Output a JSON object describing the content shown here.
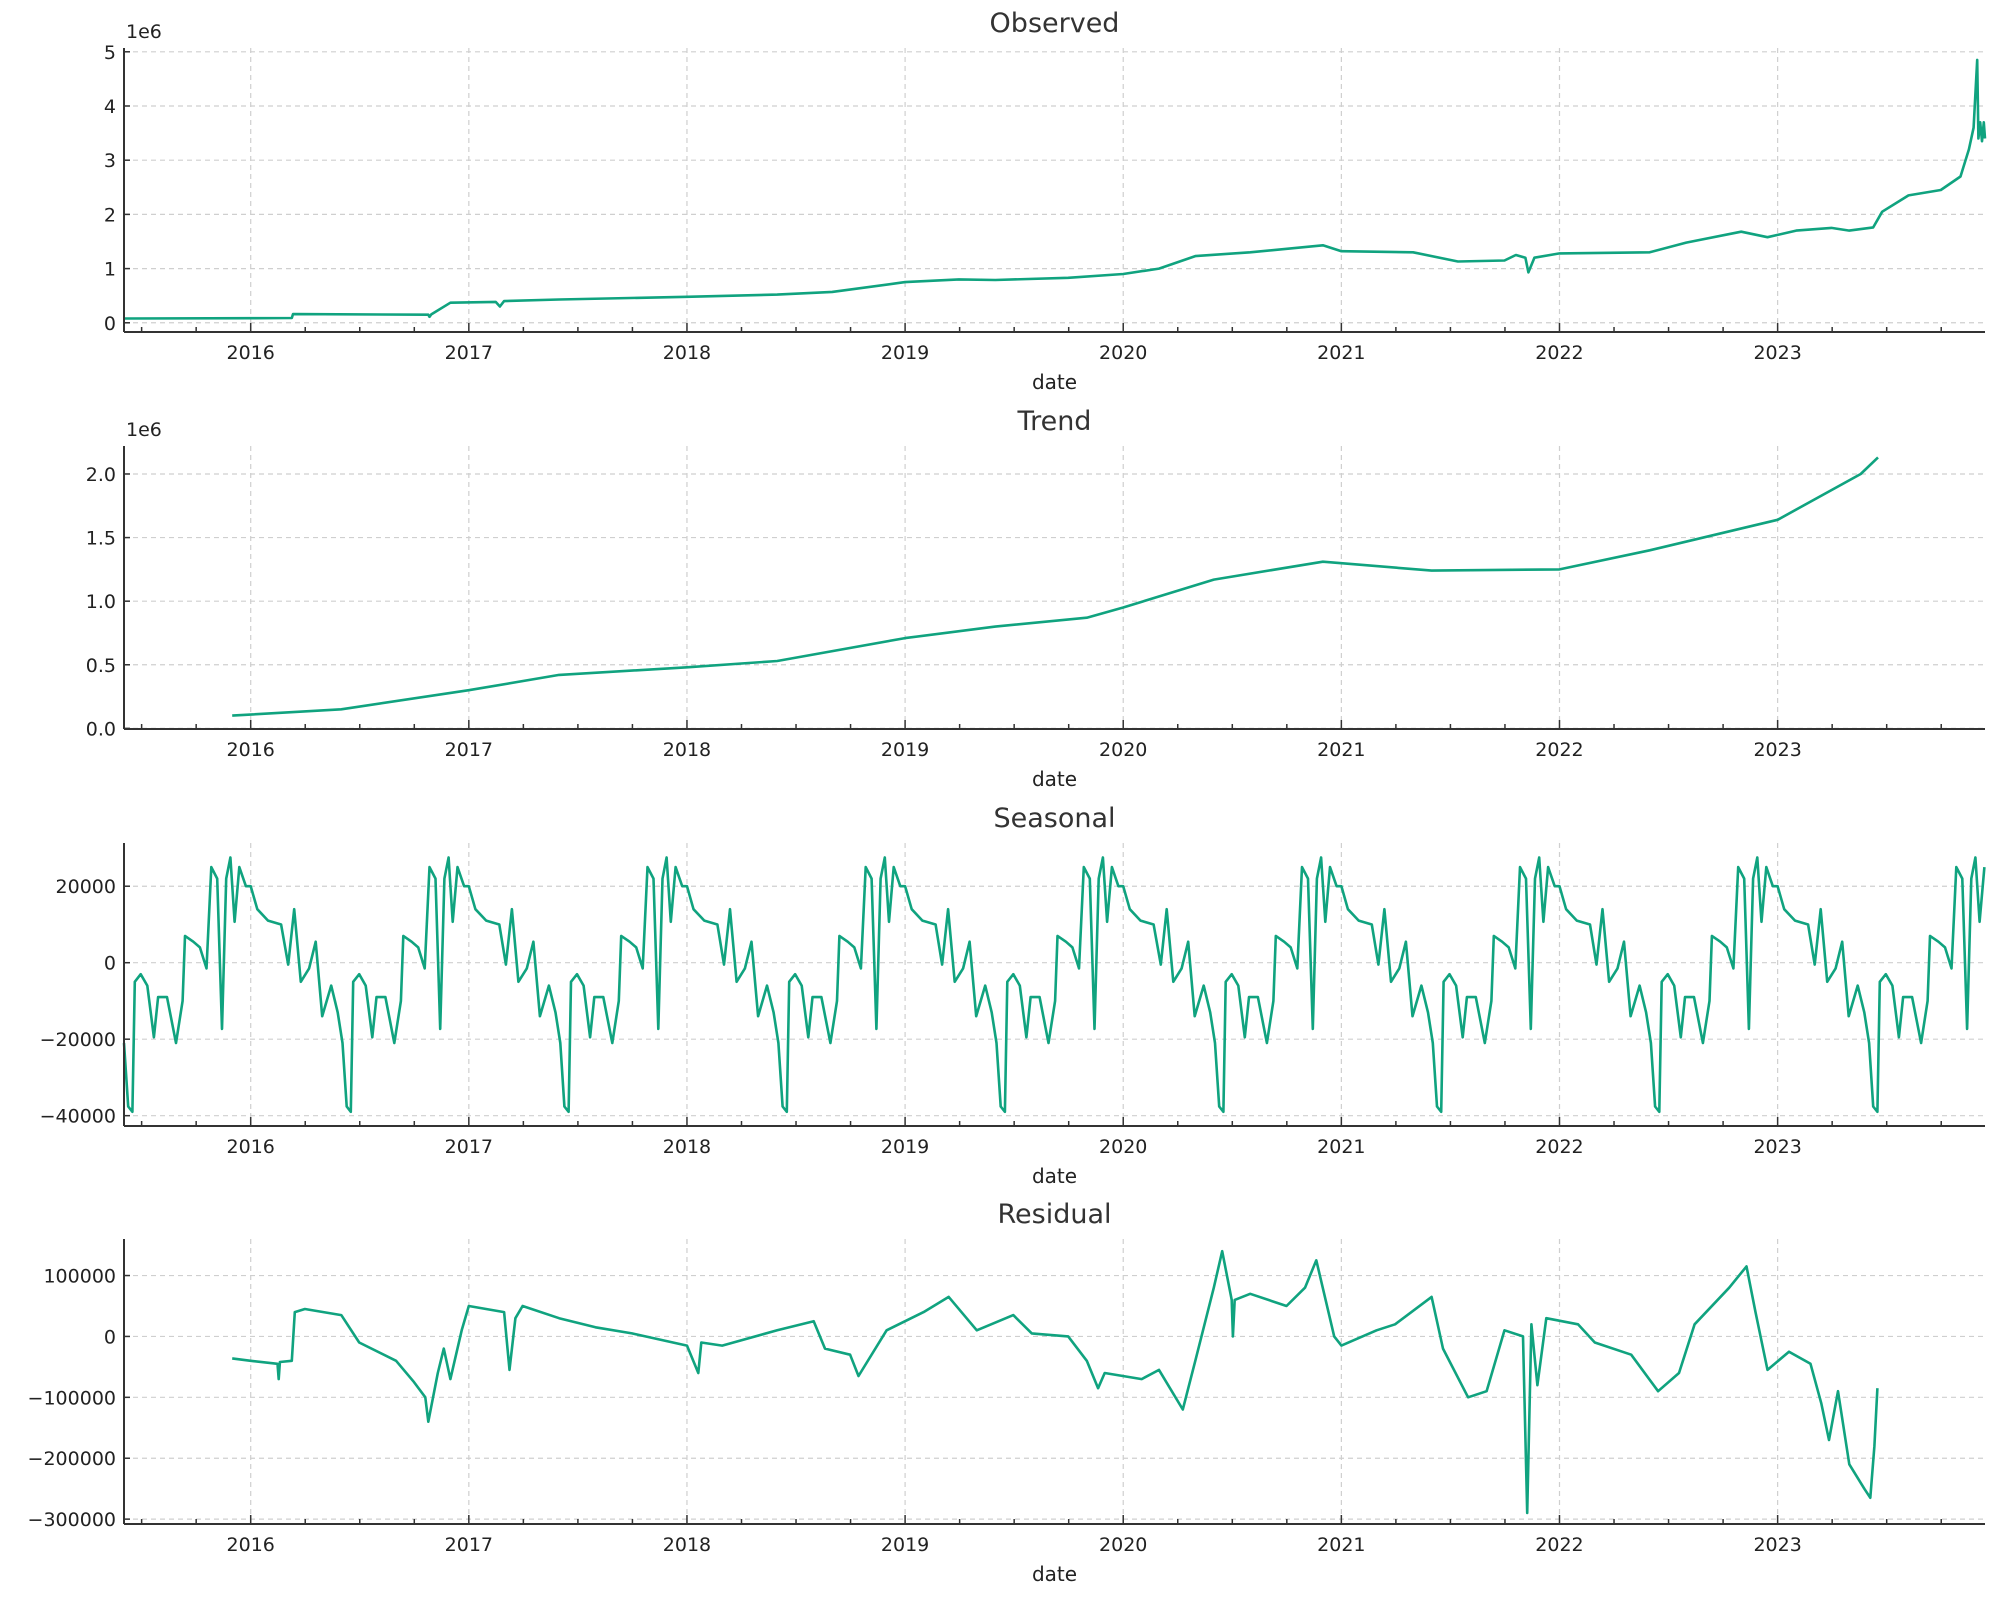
{
  "colors": {
    "line": "#10a37f",
    "grid": "#cfcfcf",
    "axis": "#333333"
  },
  "chart_data": [
    {
      "type": "line",
      "title": "Observed",
      "xlabel": "date",
      "ylabel": "",
      "offset_label": "1e6",
      "grid": true,
      "xlim": [
        "2015-06-03",
        "2023-12-14"
      ],
      "ylim": [
        -170000,
        5070000
      ],
      "xticks": [
        "2016",
        "2017",
        "2018",
        "2019",
        "2020",
        "2021",
        "2022",
        "2023"
      ],
      "yticks": [
        0,
        1000000,
        2000000,
        3000000,
        4000000,
        5000000
      ],
      "ytick_labels": [
        "0",
        "1",
        "2",
        "3",
        "4",
        "5"
      ],
      "points": [
        [
          "2015-06-03",
          80000
        ],
        [
          "2016-01-01",
          85000
        ],
        [
          "2016-03-10",
          88000
        ],
        [
          "2016-03-12",
          160000
        ],
        [
          "2016-10-25",
          150000
        ],
        [
          "2016-10-27",
          110000
        ],
        [
          "2016-10-30",
          155000
        ],
        [
          "2016-12-01",
          370000
        ],
        [
          "2017-02-15",
          385000
        ],
        [
          "2017-02-22",
          300000
        ],
        [
          "2017-03-01",
          400000
        ],
        [
          "2017-06-01",
          430000
        ],
        [
          "2018-01-01",
          480000
        ],
        [
          "2018-06-01",
          520000
        ],
        [
          "2018-09-01",
          570000
        ],
        [
          "2019-01-01",
          750000
        ],
        [
          "2019-04-01",
          800000
        ],
        [
          "2019-06-01",
          790000
        ],
        [
          "2019-10-01",
          830000
        ],
        [
          "2020-01-01",
          900000
        ],
        [
          "2020-03-01",
          1000000
        ],
        [
          "2020-05-01",
          1230000
        ],
        [
          "2020-08-01",
          1300000
        ],
        [
          "2020-12-01",
          1430000
        ],
        [
          "2021-01-01",
          1320000
        ],
        [
          "2021-05-01",
          1300000
        ],
        [
          "2021-07-15",
          1130000
        ],
        [
          "2021-10-01",
          1150000
        ],
        [
          "2021-10-20",
          1250000
        ],
        [
          "2021-11-05",
          1200000
        ],
        [
          "2021-11-10",
          930000
        ],
        [
          "2021-11-20",
          1200000
        ],
        [
          "2022-01-01",
          1280000
        ],
        [
          "2022-06-01",
          1300000
        ],
        [
          "2022-08-01",
          1480000
        ],
        [
          "2022-11-01",
          1680000
        ],
        [
          "2022-12-15",
          1580000
        ],
        [
          "2023-02-01",
          1700000
        ],
        [
          "2023-04-01",
          1750000
        ],
        [
          "2023-05-01",
          1700000
        ],
        [
          "2023-06-10",
          1760000
        ],
        [
          "2023-06-25",
          2050000
        ],
        [
          "2023-08-08",
          2350000
        ],
        [
          "2023-10-01",
          2450000
        ],
        [
          "2023-11-03",
          2700000
        ],
        [
          "2023-11-17",
          3200000
        ],
        [
          "2023-11-25",
          3600000
        ],
        [
          "2023-12-01",
          4850000
        ],
        [
          "2023-12-03",
          3400000
        ],
        [
          "2023-12-06",
          3700000
        ],
        [
          "2023-12-09",
          3350000
        ],
        [
          "2023-12-12",
          3700000
        ],
        [
          "2023-12-14",
          3400000
        ]
      ]
    },
    {
      "type": "line",
      "title": "Trend",
      "xlabel": "date",
      "ylabel": "",
      "offset_label": "1e6",
      "grid": true,
      "xlim": [
        "2015-06-03",
        "2023-12-14"
      ],
      "ylim": [
        -5000,
        2220000
      ],
      "xticks": [
        "2016",
        "2017",
        "2018",
        "2019",
        "2020",
        "2021",
        "2022",
        "2023"
      ],
      "yticks": [
        0,
        500000,
        1000000,
        1500000,
        2000000
      ],
      "ytick_labels": [
        "0.0",
        "0.5",
        "1.0",
        "1.5",
        "2.0"
      ],
      "points": [
        [
          "2015-12-01",
          100000
        ],
        [
          "2016-06-01",
          150000
        ],
        [
          "2017-01-01",
          300000
        ],
        [
          "2017-06-01",
          420000
        ],
        [
          "2018-01-01",
          480000
        ],
        [
          "2018-06-01",
          530000
        ],
        [
          "2019-01-01",
          710000
        ],
        [
          "2019-06-01",
          800000
        ],
        [
          "2019-11-01",
          870000
        ],
        [
          "2020-01-01",
          950000
        ],
        [
          "2020-06-01",
          1170000
        ],
        [
          "2020-12-01",
          1310000
        ],
        [
          "2021-06-01",
          1240000
        ],
        [
          "2022-01-01",
          1250000
        ],
        [
          "2022-06-01",
          1400000
        ],
        [
          "2023-01-01",
          1640000
        ],
        [
          "2023-05-20",
          2000000
        ],
        [
          "2023-06-18",
          2130000
        ]
      ]
    },
    {
      "type": "line",
      "title": "Seasonal",
      "xlabel": "date",
      "ylabel": "",
      "grid": true,
      "repeats": "yearly",
      "xlim": [
        "2015-06-03",
        "2023-12-14"
      ],
      "ylim": [
        -42700,
        31300
      ],
      "xticks": [
        "2016",
        "2017",
        "2018",
        "2019",
        "2020",
        "2021",
        "2022",
        "2023"
      ],
      "yticks": [
        -40000,
        -20000,
        0,
        20000
      ],
      "ytick_labels": [
        "−40000",
        "−20000",
        "0",
        "20000"
      ],
      "cycle_points": [
        [
          "01-01",
          20000
        ],
        [
          "01-12",
          14000
        ],
        [
          "01-30",
          11000
        ],
        [
          "02-21",
          10000
        ],
        [
          "03-04",
          -500
        ],
        [
          "03-14",
          14000
        ],
        [
          "03-25",
          -5000
        ],
        [
          "04-08",
          -1500
        ],
        [
          "04-19",
          5500
        ],
        [
          "04-30",
          -14000
        ],
        [
          "05-15",
          -6000
        ],
        [
          "05-26",
          -13000
        ],
        [
          "06-03",
          -21000
        ],
        [
          "06-10",
          -37600
        ],
        [
          "06-17",
          -39000
        ],
        [
          "06-21",
          -5000
        ],
        [
          "07-01",
          -3000
        ],
        [
          "07-12",
          -6000
        ],
        [
          "07-23",
          -19500
        ],
        [
          "07-30",
          -9000
        ],
        [
          "08-14",
          -9000
        ],
        [
          "08-29",
          -21000
        ],
        [
          "09-09",
          -10000
        ],
        [
          "09-13",
          7000
        ],
        [
          "09-27",
          5500
        ],
        [
          "10-08",
          4000
        ],
        [
          "10-19",
          -1500
        ],
        [
          "10-27",
          25000
        ],
        [
          "11-06",
          22000
        ],
        [
          "11-14",
          -17300
        ],
        [
          "11-21",
          22000
        ],
        [
          "11-28",
          27500
        ],
        [
          "12-05",
          10700
        ],
        [
          "12-13",
          25000
        ],
        [
          "12-24",
          20000
        ]
      ]
    },
    {
      "type": "line",
      "title": "Residual",
      "xlabel": "date",
      "ylabel": "",
      "grid": true,
      "xlim": [
        "2015-06-03",
        "2023-12-14"
      ],
      "ylim": [
        -308000,
        160000
      ],
      "xticks": [
        "2016",
        "2017",
        "2018",
        "2019",
        "2020",
        "2021",
        "2022",
        "2023"
      ],
      "yticks": [
        -300000,
        -200000,
        -100000,
        0,
        100000
      ],
      "ytick_labels": [
        "−300000",
        "−200000",
        "−100000",
        "0",
        "100000"
      ],
      "points": [
        [
          "2015-12-01",
          -36000
        ],
        [
          "2016-01-01",
          -40000
        ],
        [
          "2016-02-15",
          -45000
        ],
        [
          "2016-02-17",
          -70000
        ],
        [
          "2016-02-19",
          -42000
        ],
        [
          "2016-03-10",
          -40000
        ],
        [
          "2016-03-15",
          40000
        ],
        [
          "2016-04-01",
          45000
        ],
        [
          "2016-06-01",
          35000
        ],
        [
          "2016-07-01",
          -10000
        ],
        [
          "2016-09-01",
          -40000
        ],
        [
          "2016-10-01",
          -75000
        ],
        [
          "2016-10-20",
          -100000
        ],
        [
          "2016-10-25",
          -140000
        ],
        [
          "2016-11-10",
          -60000
        ],
        [
          "2016-11-20",
          -20000
        ],
        [
          "2016-12-01",
          -70000
        ],
        [
          "2016-12-20",
          10000
        ],
        [
          "2017-01-01",
          50000
        ],
        [
          "2017-03-01",
          40000
        ],
        [
          "2017-03-10",
          -55000
        ],
        [
          "2017-03-20",
          30000
        ],
        [
          "2017-04-01",
          50000
        ],
        [
          "2017-06-01",
          30000
        ],
        [
          "2017-08-01",
          15000
        ],
        [
          "2017-10-01",
          5000
        ],
        [
          "2018-01-01",
          -15000
        ],
        [
          "2018-01-20",
          -60000
        ],
        [
          "2018-01-25",
          -10000
        ],
        [
          "2018-03-01",
          -15000
        ],
        [
          "2018-06-01",
          10000
        ],
        [
          "2018-08-01",
          25000
        ],
        [
          "2018-08-20",
          -20000
        ],
        [
          "2018-10-01",
          -30000
        ],
        [
          "2018-10-15",
          -65000
        ],
        [
          "2018-12-01",
          10000
        ],
        [
          "2019-02-01",
          40000
        ],
        [
          "2019-03-15",
          65000
        ],
        [
          "2019-05-01",
          10000
        ],
        [
          "2019-07-01",
          35000
        ],
        [
          "2019-08-01",
          5000
        ],
        [
          "2019-10-01",
          0
        ],
        [
          "2019-11-01",
          -40000
        ],
        [
          "2019-11-20",
          -85000
        ],
        [
          "2019-12-01",
          -60000
        ],
        [
          "2020-02-01",
          -70000
        ],
        [
          "2020-03-01",
          -55000
        ],
        [
          "2020-04-10",
          -120000
        ],
        [
          "2020-05-01",
          -40000
        ],
        [
          "2020-06-01",
          80000
        ],
        [
          "2020-06-15",
          140000
        ],
        [
          "2020-07-01",
          60000
        ],
        [
          "2020-07-03",
          0
        ],
        [
          "2020-07-06",
          60000
        ],
        [
          "2020-08-01",
          70000
        ],
        [
          "2020-10-01",
          50000
        ],
        [
          "2020-11-01",
          80000
        ],
        [
          "2020-11-20",
          125000
        ],
        [
          "2020-12-20",
          0
        ],
        [
          "2021-01-01",
          -15000
        ],
        [
          "2021-03-01",
          10000
        ],
        [
          "2021-04-01",
          20000
        ],
        [
          "2021-06-01",
          65000
        ],
        [
          "2021-06-20",
          -20000
        ],
        [
          "2021-08-01",
          -100000
        ],
        [
          "2021-09-01",
          -90000
        ],
        [
          "2021-10-01",
          10000
        ],
        [
          "2021-11-01",
          0
        ],
        [
          "2021-11-08",
          -290000
        ],
        [
          "2021-11-15",
          20000
        ],
        [
          "2021-11-25",
          -80000
        ],
        [
          "2021-12-10",
          30000
        ],
        [
          "2022-02-01",
          20000
        ],
        [
          "2022-03-01",
          -10000
        ],
        [
          "2022-05-01",
          -30000
        ],
        [
          "2022-06-15",
          -90000
        ],
        [
          "2022-07-20",
          -60000
        ],
        [
          "2022-08-15",
          20000
        ],
        [
          "2022-10-12",
          80000
        ],
        [
          "2022-11-10",
          115000
        ],
        [
          "2022-11-25",
          40000
        ],
        [
          "2022-12-15",
          -55000
        ],
        [
          "2023-01-20",
          -25000
        ],
        [
          "2023-02-25",
          -45000
        ],
        [
          "2023-03-15",
          -110000
        ],
        [
          "2023-03-28",
          -170000
        ],
        [
          "2023-04-12",
          -90000
        ],
        [
          "2023-05-01",
          -210000
        ],
        [
          "2023-05-26",
          -250000
        ],
        [
          "2023-06-05",
          -265000
        ],
        [
          "2023-06-12",
          -180000
        ],
        [
          "2023-06-17",
          -85000
        ]
      ]
    }
  ]
}
